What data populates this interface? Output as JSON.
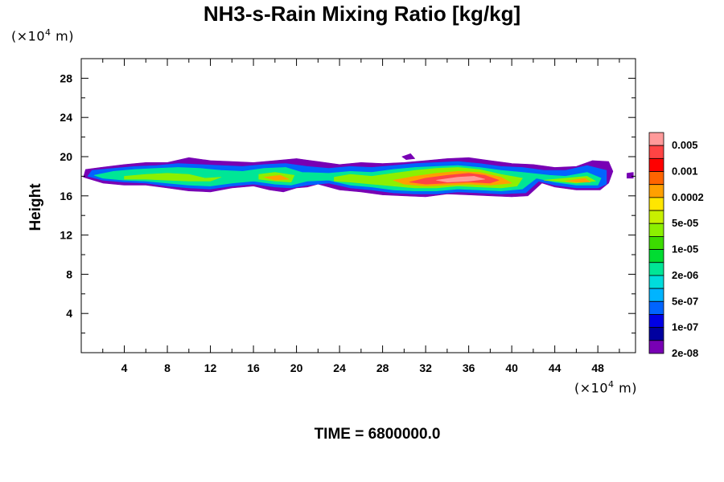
{
  "chart_data": {
    "type": "heatmap",
    "title": "NH3-s-Rain Mixing Ratio [kg/kg]",
    "ylabel": "Height",
    "y_unit": {
      "prefix": "(×10",
      "exp": "4",
      "suffix": " m)"
    },
    "x_unit": {
      "prefix": "(×10",
      "exp": "4",
      "suffix": " m)"
    },
    "time_label": "TIME = 6800000.0",
    "xlim": [
      0,
      51.5
    ],
    "ylim": [
      0,
      30
    ],
    "x_ticks": [
      "4",
      "8",
      "12",
      "16",
      "20",
      "24",
      "28",
      "32",
      "36",
      "40",
      "44",
      "48"
    ],
    "y_ticks": [
      "4",
      "8",
      "12",
      "16",
      "20",
      "24",
      "28"
    ],
    "colorbar": {
      "labels": [
        "0.005",
        "0.001",
        "0.0002",
        "5e-05",
        "1e-05",
        "2e-06",
        "5e-07",
        "1e-07",
        "2e-08"
      ],
      "colors": [
        "#ff9a9a",
        "#ff4444",
        "#ff0000",
        "#ff6400",
        "#ffa000",
        "#ffe600",
        "#c8f000",
        "#8cf000",
        "#3cdc00",
        "#00dc32",
        "#00e696",
        "#00dcdc",
        "#00b4ff",
        "#0064ff",
        "#0000e6",
        "#0000a0",
        "#7800b4"
      ]
    },
    "layers": [
      {
        "level": 16,
        "color": "#7800b4",
        "points": [
          [
            0.2,
            17.9
          ],
          [
            0.4,
            18.7
          ],
          [
            1.8,
            18.9
          ],
          [
            4,
            19.2
          ],
          [
            6,
            19.4
          ],
          [
            8,
            19.4
          ],
          [
            10,
            19.9
          ],
          [
            12,
            19.6
          ],
          [
            14,
            19.5
          ],
          [
            16,
            19.4
          ],
          [
            18,
            19.6
          ],
          [
            20,
            19.8
          ],
          [
            22,
            19.5
          ],
          [
            24,
            19.2
          ],
          [
            26,
            19.4
          ],
          [
            28,
            19.3
          ],
          [
            30,
            19.4
          ],
          [
            32,
            19.6
          ],
          [
            34,
            19.8
          ],
          [
            36,
            19.9
          ],
          [
            38,
            19.6
          ],
          [
            40,
            19.3
          ],
          [
            42,
            19.2
          ],
          [
            44,
            18.9
          ],
          [
            46,
            19.0
          ],
          [
            47.5,
            19.6
          ],
          [
            49,
            19.5
          ],
          [
            49.4,
            18.5
          ],
          [
            49,
            17.3
          ],
          [
            48.2,
            16.6
          ],
          [
            46,
            16.6
          ],
          [
            44,
            16.9
          ],
          [
            42.8,
            17.3
          ],
          [
            41.5,
            16.0
          ],
          [
            40,
            15.9
          ],
          [
            38,
            16.0
          ],
          [
            36,
            16.1
          ],
          [
            34,
            16.2
          ],
          [
            32,
            15.9
          ],
          [
            30,
            16.0
          ],
          [
            28,
            16.1
          ],
          [
            26,
            16.4
          ],
          [
            24,
            16.6
          ],
          [
            22,
            17.2
          ],
          [
            21,
            16.9
          ],
          [
            20,
            16.8
          ],
          [
            18.8,
            16.4
          ],
          [
            17.5,
            16.6
          ],
          [
            16,
            17.0
          ],
          [
            14,
            16.8
          ],
          [
            12,
            16.4
          ],
          [
            10,
            16.5
          ],
          [
            8,
            16.8
          ],
          [
            6,
            17.1
          ],
          [
            4,
            17.1
          ],
          [
            2,
            17.3
          ]
        ]
      },
      {
        "level": 13,
        "color": "#0064ff",
        "points": [
          [
            0.6,
            18.0
          ],
          [
            1,
            18.6
          ],
          [
            3,
            18.8
          ],
          [
            5,
            19.0
          ],
          [
            7,
            19.1
          ],
          [
            9,
            19.3
          ],
          [
            11,
            19.2
          ],
          [
            13,
            19.1
          ],
          [
            15,
            19.0
          ],
          [
            17,
            19.2
          ],
          [
            19,
            19.3
          ],
          [
            21,
            19.0
          ],
          [
            23,
            18.8
          ],
          [
            25,
            19.0
          ],
          [
            27,
            18.9
          ],
          [
            29,
            19.1
          ],
          [
            31,
            19.3
          ],
          [
            33,
            19.4
          ],
          [
            35,
            19.5
          ],
          [
            37,
            19.3
          ],
          [
            39,
            19.0
          ],
          [
            41,
            18.9
          ],
          [
            43,
            18.6
          ],
          [
            45,
            18.6
          ],
          [
            47,
            19.1
          ],
          [
            48.8,
            18.6
          ],
          [
            48.8,
            17.2
          ],
          [
            48,
            16.8
          ],
          [
            46,
            16.8
          ],
          [
            44,
            17.1
          ],
          [
            42.5,
            17.5
          ],
          [
            41.3,
            16.3
          ],
          [
            39,
            16.2
          ],
          [
            37,
            16.3
          ],
          [
            35,
            16.4
          ],
          [
            33,
            16.2
          ],
          [
            31,
            16.2
          ],
          [
            29,
            16.3
          ],
          [
            27,
            16.6
          ],
          [
            25,
            16.8
          ],
          [
            23,
            17.3
          ],
          [
            21,
            17.1
          ],
          [
            19.5,
            16.8
          ],
          [
            18,
            16.9
          ],
          [
            16,
            17.2
          ],
          [
            14,
            17.0
          ],
          [
            12,
            16.7
          ],
          [
            10,
            16.8
          ],
          [
            8,
            17.0
          ],
          [
            6,
            17.3
          ],
          [
            4,
            17.4
          ],
          [
            2,
            17.6
          ]
        ]
      },
      {
        "level": 11,
        "color": "#00e696",
        "points": [
          [
            1.2,
            18.1
          ],
          [
            3,
            18.5
          ],
          [
            5,
            18.7
          ],
          [
            7,
            18.8
          ],
          [
            9,
            18.9
          ],
          [
            11,
            18.8
          ],
          [
            13,
            18.6
          ],
          [
            15,
            18.5
          ],
          [
            17,
            18.8
          ],
          [
            19,
            18.9
          ],
          [
            20.5,
            18.4
          ],
          [
            23,
            18.3
          ],
          [
            25,
            18.5
          ],
          [
            27,
            18.4
          ],
          [
            29,
            18.7
          ],
          [
            31,
            18.9
          ],
          [
            33,
            19.0
          ],
          [
            35,
            19.1
          ],
          [
            37,
            18.9
          ],
          [
            39,
            18.6
          ],
          [
            41,
            18.4
          ],
          [
            43.5,
            18.1
          ],
          [
            45,
            18.0
          ],
          [
            47,
            18.4
          ],
          [
            48.3,
            17.8
          ],
          [
            48,
            17.1
          ],
          [
            46,
            17.1
          ],
          [
            44,
            17.4
          ],
          [
            42.3,
            17.8
          ],
          [
            41,
            16.7
          ],
          [
            39,
            16.5
          ],
          [
            37,
            16.6
          ],
          [
            35,
            16.7
          ],
          [
            33,
            16.5
          ],
          [
            31,
            16.5
          ],
          [
            29,
            16.6
          ],
          [
            27,
            16.9
          ],
          [
            25,
            17.1
          ],
          [
            23,
            17.6
          ],
          [
            21,
            17.5
          ],
          [
            19.5,
            17.1
          ],
          [
            18,
            17.2
          ],
          [
            16,
            17.5
          ],
          [
            14,
            17.3
          ],
          [
            12,
            17.0
          ],
          [
            10,
            17.1
          ],
          [
            8,
            17.3
          ],
          [
            6,
            17.5
          ],
          [
            4,
            17.6
          ],
          [
            2,
            17.8
          ]
        ]
      },
      {
        "level": 8,
        "color": "#8cf000",
        "points": [
          [
            4,
            18.0
          ],
          [
            6,
            18.2
          ],
          [
            8,
            18.3
          ],
          [
            10,
            18.2
          ],
          [
            11.5,
            17.8
          ],
          [
            13,
            17.9
          ],
          [
            12,
            17.5
          ],
          [
            10,
            17.5
          ],
          [
            8,
            17.6
          ],
          [
            6,
            17.7
          ],
          [
            4,
            17.7
          ]
        ]
      },
      {
        "level": 8,
        "color": "#8cf000",
        "points": [
          [
            16.5,
            18.2
          ],
          [
            18,
            18.4
          ],
          [
            19.8,
            18.1
          ],
          [
            19.5,
            17.4
          ],
          [
            18,
            17.5
          ],
          [
            16.5,
            17.7
          ]
        ]
      },
      {
        "level": 8,
        "color": "#8cf000",
        "points": [
          [
            23.5,
            17.9
          ],
          [
            25,
            18.2
          ],
          [
            27,
            18.0
          ],
          [
            29,
            18.3
          ],
          [
            31,
            18.6
          ],
          [
            33,
            18.8
          ],
          [
            35,
            18.9
          ],
          [
            37,
            18.7
          ],
          [
            39,
            18.2
          ],
          [
            41,
            17.8
          ],
          [
            40.5,
            17.0
          ],
          [
            39,
            16.8
          ],
          [
            37,
            16.9
          ],
          [
            35,
            17.0
          ],
          [
            33,
            16.8
          ],
          [
            31,
            16.8
          ],
          [
            29,
            17.0
          ],
          [
            27,
            17.2
          ],
          [
            25,
            17.4
          ],
          [
            23.5,
            17.5
          ]
        ]
      },
      {
        "level": 8,
        "color": "#8cf000",
        "points": [
          [
            43,
            17.6
          ],
          [
            45,
            17.8
          ],
          [
            47,
            18.0
          ],
          [
            47.8,
            17.5
          ],
          [
            46,
            17.3
          ],
          [
            44,
            17.5
          ]
        ]
      },
      {
        "level": 4,
        "color": "#ffa000",
        "points": [
          [
            17,
            17.9
          ],
          [
            18.5,
            18.1
          ],
          [
            19.3,
            17.7
          ],
          [
            18,
            17.6
          ]
        ]
      },
      {
        "level": 4,
        "color": "#ffa000",
        "points": [
          [
            29,
            17.6
          ],
          [
            31,
            18.0
          ],
          [
            33,
            18.3
          ],
          [
            35,
            18.5
          ],
          [
            37,
            18.4
          ],
          [
            39,
            17.9
          ],
          [
            40,
            17.3
          ],
          [
            38,
            17.1
          ],
          [
            36,
            17.2
          ],
          [
            34,
            17.1
          ],
          [
            32,
            17.0
          ],
          [
            30,
            17.2
          ]
        ]
      },
      {
        "level": 4,
        "color": "#ffa000",
        "points": [
          [
            45,
            17.5
          ],
          [
            46.8,
            17.8
          ],
          [
            47.3,
            17.4
          ],
          [
            46,
            17.4
          ]
        ]
      },
      {
        "level": 1,
        "color": "#ff4444",
        "points": [
          [
            30.5,
            17.4
          ],
          [
            32,
            17.8
          ],
          [
            34,
            18.1
          ],
          [
            36,
            18.3
          ],
          [
            37.5,
            18.1
          ],
          [
            38.8,
            17.6
          ],
          [
            38,
            17.3
          ],
          [
            36,
            17.4
          ],
          [
            34,
            17.3
          ],
          [
            32,
            17.2
          ]
        ]
      },
      {
        "level": 0,
        "color": "#ff9a9a",
        "points": [
          [
            33,
            17.6
          ],
          [
            35,
            17.9
          ],
          [
            36.5,
            18.0
          ],
          [
            37.5,
            17.7
          ],
          [
            36,
            17.5
          ],
          [
            34,
            17.4
          ]
        ]
      },
      {
        "level": 16,
        "color": "#7800b4",
        "points": [
          [
            50.7,
            18.3
          ],
          [
            51.3,
            18.4
          ],
          [
            51.3,
            17.8
          ],
          [
            50.7,
            17.8
          ]
        ]
      },
      {
        "level": 16,
        "color": "#7800b4",
        "points": [
          [
            29.8,
            20.0
          ],
          [
            30.6,
            20.3
          ],
          [
            31.0,
            19.8
          ],
          [
            30.2,
            19.7
          ]
        ]
      }
    ]
  }
}
